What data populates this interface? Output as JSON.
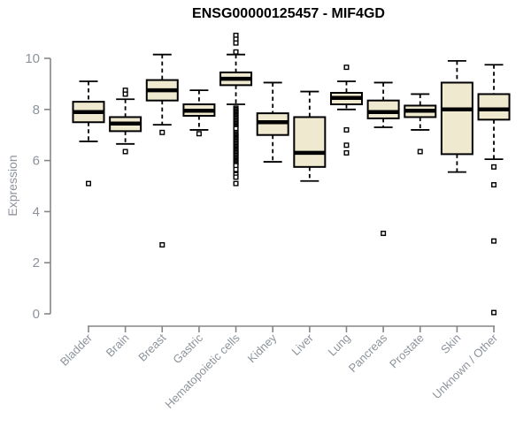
{
  "chart_data": {
    "type": "box",
    "title": "ENSG00000125457 - MIF4GD",
    "xlabel": "",
    "ylabel": "Expression",
    "ylim": [
      0,
      11
    ],
    "yticks": [
      0,
      2,
      4,
      6,
      8,
      10
    ],
    "grid": false,
    "legend": null,
    "categories": [
      "Bladder",
      "Brain",
      "Breast",
      "Gastric",
      "Hematopoietic cells",
      "Kidney",
      "Liver",
      "Lung",
      "Pancreas",
      "Prostate",
      "Skin",
      "Unknown / Other"
    ],
    "boxes": [
      {
        "category": "Bladder",
        "whisker_low": 6.75,
        "q1": 7.5,
        "median": 7.9,
        "q3": 8.3,
        "whisker_high": 9.1,
        "outliers": [
          5.1
        ]
      },
      {
        "category": "Brain",
        "whisker_low": 6.65,
        "q1": 7.15,
        "median": 7.45,
        "q3": 7.7,
        "whisker_high": 8.4,
        "outliers": [
          8.75,
          8.6,
          6.35
        ]
      },
      {
        "category": "Breast",
        "whisker_low": 7.4,
        "q1": 8.35,
        "median": 8.75,
        "q3": 9.15,
        "whisker_high": 10.15,
        "outliers": [
          7.1,
          2.7
        ]
      },
      {
        "category": "Gastric",
        "whisker_low": 7.2,
        "q1": 7.75,
        "median": 7.95,
        "q3": 8.2,
        "whisker_high": 8.75,
        "outliers": [
          7.05
        ]
      },
      {
        "category": "Hematopoietic cells",
        "whisker_low": 8.2,
        "q1": 8.95,
        "median": 9.2,
        "q3": 9.45,
        "whisker_high": 10.15,
        "outliers": [
          10.9,
          10.75,
          10.6,
          10.25,
          8.05,
          8.0,
          7.95,
          7.9,
          7.85,
          7.8,
          7.75,
          7.7,
          7.65,
          7.6,
          7.55,
          7.5,
          7.45,
          7.4,
          7.35,
          7.3,
          7.25,
          7.1,
          7.05,
          7.0,
          6.95,
          6.9,
          6.85,
          6.8,
          6.75,
          6.7,
          6.65,
          6.6,
          6.55,
          6.5,
          6.45,
          6.4,
          6.35,
          6.3,
          6.25,
          6.2,
          6.15,
          6.1,
          6.05,
          6.0,
          5.95,
          5.9,
          5.85,
          5.8,
          5.65,
          5.45,
          5.35,
          5.1
        ]
      },
      {
        "category": "Kidney",
        "whisker_low": 5.95,
        "q1": 7.0,
        "median": 7.5,
        "q3": 7.85,
        "whisker_high": 9.05,
        "outliers": []
      },
      {
        "category": "Liver",
        "whisker_low": 5.2,
        "q1": 5.75,
        "median": 6.3,
        "q3": 7.7,
        "whisker_high": 8.7,
        "outliers": []
      },
      {
        "category": "Lung",
        "whisker_low": 8.0,
        "q1": 8.2,
        "median": 8.45,
        "q3": 8.65,
        "whisker_high": 9.1,
        "outliers": [
          9.65,
          7.2,
          6.6,
          6.3
        ]
      },
      {
        "category": "Pancreas",
        "whisker_low": 7.3,
        "q1": 7.65,
        "median": 7.9,
        "q3": 8.35,
        "whisker_high": 9.05,
        "outliers": [
          3.15
        ]
      },
      {
        "category": "Prostate",
        "whisker_low": 7.2,
        "q1": 7.7,
        "median": 7.95,
        "q3": 8.15,
        "whisker_high": 8.6,
        "outliers": [
          6.35
        ]
      },
      {
        "category": "Skin",
        "whisker_low": 5.55,
        "q1": 6.25,
        "median": 8.0,
        "q3": 9.05,
        "whisker_high": 9.9,
        "outliers": []
      },
      {
        "category": "Unknown / Other",
        "whisker_low": 6.05,
        "q1": 7.6,
        "median": 8.0,
        "q3": 8.6,
        "whisker_high": 9.75,
        "outliers": [
          5.75,
          5.05,
          2.85,
          0.05
        ]
      }
    ],
    "colors": {
      "box_fill": "#efe9d0",
      "box_stroke": "#000000",
      "median": "#000000",
      "axis": "#858585",
      "tick_label": "#8d939b",
      "title": "#000000",
      "background": "#ffffff"
    }
  }
}
